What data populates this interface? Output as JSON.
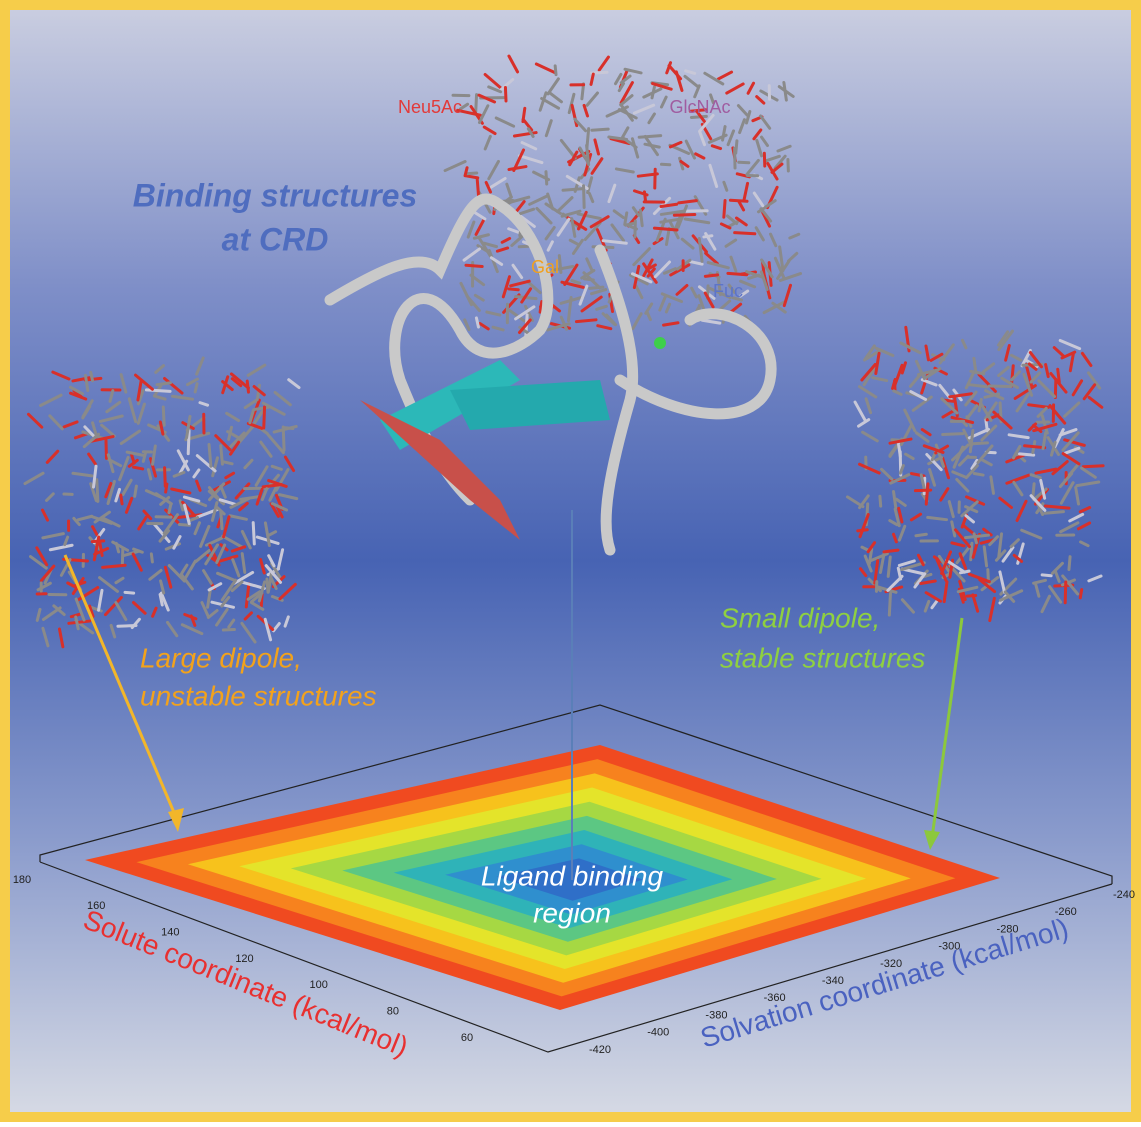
{
  "labels": {
    "binding_title": [
      "Binding structures",
      "at CRD"
    ],
    "residues": {
      "neu5ac": "Neu5Ac",
      "glcnac": "GlcNAc",
      "gal": "Gal",
      "fuc": "Fuc"
    },
    "large_dipole": [
      "Large dipole,",
      "unstable structures"
    ],
    "small_dipole": [
      "Small dipole,",
      "stable structures"
    ],
    "ligand_region": [
      "Ligand binding",
      "region"
    ]
  },
  "plot": {
    "x_axis_title": "Solute coordinate  (kcal/mol)",
    "y_axis_title": "Solvation coordinate (kcal/mol)",
    "x_tick_labels": [
      "180",
      "160",
      "140",
      "120",
      "100",
      "80",
      "60"
    ],
    "y_tick_labels": [
      "-240",
      "-260",
      "-280",
      "-300",
      "-320",
      "-340",
      "-360",
      "-380",
      "-400",
      "-420"
    ]
  }
}
